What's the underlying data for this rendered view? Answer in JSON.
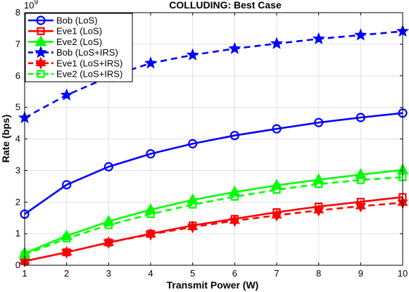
{
  "chart_data": {
    "type": "line",
    "title": "COLLUDING: Best Case",
    "xlabel": "Transmit Power (W)",
    "ylabel": "Rate (bps)",
    "y_exponent_label": "10",
    "y_exponent_power": "9",
    "xlim": [
      1,
      10
    ],
    "ylim": [
      0,
      8000000000.0
    ],
    "grid": true,
    "legend_position": "top-left",
    "x": [
      1,
      2,
      3,
      4,
      5,
      6,
      7,
      8,
      9,
      10
    ],
    "x_ticks": [
      "1",
      "2",
      "3",
      "4",
      "5",
      "6",
      "7",
      "8",
      "9",
      "10"
    ],
    "y_ticks": [
      "0",
      "1",
      "2",
      "3",
      "4",
      "5",
      "6",
      "7",
      "8"
    ],
    "series": [
      {
        "name": "Bob (LoS)",
        "color": "#0000FF",
        "marker": "circle",
        "dashed": false,
        "values": [
          1620000000.0,
          2550000000.0,
          3120000000.0,
          3530000000.0,
          3850000000.0,
          4110000000.0,
          4320000000.0,
          4520000000.0,
          4680000000.0,
          4820000000.0
        ]
      },
      {
        "name": "Eve1 (LoS)",
        "color": "#FF0000",
        "marker": "square",
        "dashed": false,
        "values": [
          130000000.0,
          410000000.0,
          720000000.0,
          1000000000.0,
          1260000000.0,
          1470000000.0,
          1680000000.0,
          1860000000.0,
          2010000000.0,
          2160000000.0
        ]
      },
      {
        "name": "Eve2 (LoS)",
        "color": "#00FF00",
        "marker": "triangle",
        "dashed": false,
        "values": [
          380000000.0,
          930000000.0,
          1390000000.0,
          1760000000.0,
          2070000000.0,
          2320000000.0,
          2530000000.0,
          2710000000.0,
          2870000000.0,
          3020000000.0
        ]
      },
      {
        "name": "Bob (LoS+IRS)",
        "color": "#0000FF",
        "marker": "star",
        "dashed": true,
        "values": [
          4670000000.0,
          5390000000.0,
          5960000000.0,
          6400000000.0,
          6660000000.0,
          6860000000.0,
          7020000000.0,
          7170000000.0,
          7290000000.0,
          7410000000.0
        ]
      },
      {
        "name": "Eve1 (LoS+IRS)",
        "color": "#FF0000",
        "marker": "hexagram",
        "dashed": true,
        "values": [
          130000000.0,
          410000000.0,
          720000000.0,
          980000000.0,
          1210000000.0,
          1410000000.0,
          1580000000.0,
          1740000000.0,
          1870000000.0,
          1980000000.0
        ]
      },
      {
        "name": "Eve2 (LoS+IRS)",
        "color": "#00FF00",
        "marker": "square-open",
        "dashed": true,
        "values": [
          330000000.0,
          850000000.0,
          1270000000.0,
          1620000000.0,
          1920000000.0,
          2170000000.0,
          2390000000.0,
          2570000000.0,
          2700000000.0,
          2790000000.0
        ]
      }
    ]
  }
}
